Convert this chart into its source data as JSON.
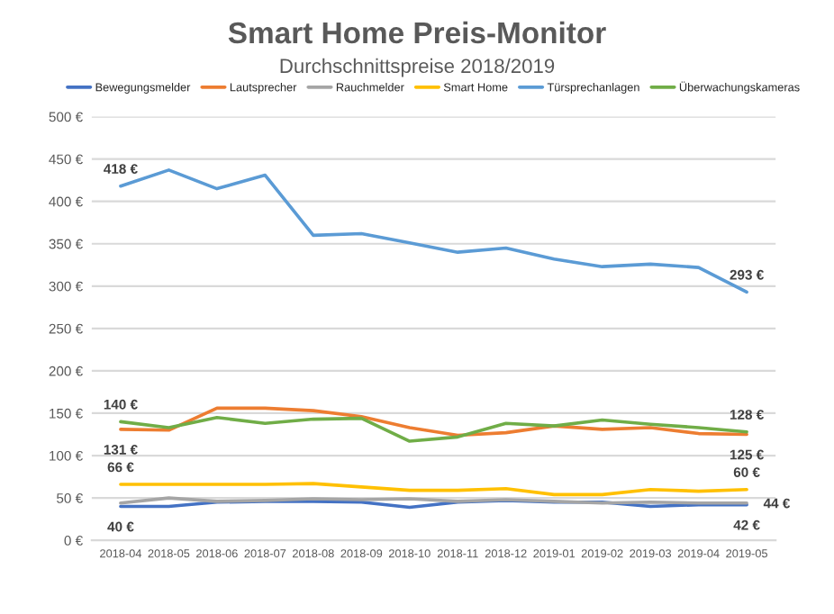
{
  "chart_data": {
    "type": "line",
    "title": "Smart Home Preis-Monitor",
    "subtitle": "Durchschnittspreise 2018/2019",
    "categories": [
      "2018-04",
      "2018-05",
      "2018-06",
      "2018-07",
      "2018-08",
      "2018-09",
      "2018-10",
      "2018-11",
      "2018-12",
      "2019-01",
      "2019-02",
      "2019-03",
      "2019-04",
      "2019-05"
    ],
    "series": [
      {
        "name": "Bewegungsmelder",
        "color": "#4472c4",
        "values": [
          40,
          40,
          45,
          46,
          46,
          45,
          39,
          45,
          47,
          45,
          45,
          40,
          42,
          42
        ],
        "value_labels": [
          "40 €",
          null,
          null,
          null,
          null,
          null,
          null,
          null,
          null,
          null,
          null,
          null,
          null,
          "42 €"
        ]
      },
      {
        "name": "Lautsprecher",
        "color": "#ed7d31",
        "values": [
          131,
          130,
          156,
          156,
          153,
          146,
          133,
          124,
          127,
          135,
          131,
          133,
          126,
          125
        ],
        "value_labels": [
          "131 €",
          null,
          null,
          null,
          null,
          null,
          null,
          null,
          null,
          null,
          null,
          null,
          null,
          "125 €"
        ]
      },
      {
        "name": "Rauchmelder",
        "color": "#a5a5a5",
        "values": [
          44,
          50,
          46,
          47,
          49,
          48,
          49,
          46,
          48,
          46,
          44,
          45,
          44,
          44
        ],
        "value_labels": [
          null,
          null,
          null,
          null,
          null,
          null,
          null,
          null,
          null,
          null,
          null,
          null,
          null,
          "44 €"
        ]
      },
      {
        "name": "Smart Home",
        "color": "#ffc000",
        "values": [
          66,
          66,
          66,
          66,
          67,
          63,
          59,
          59,
          61,
          54,
          54,
          60,
          58,
          60
        ],
        "value_labels": [
          "66 €",
          null,
          null,
          null,
          null,
          null,
          null,
          null,
          null,
          null,
          null,
          null,
          null,
          "60 €"
        ]
      },
      {
        "name": "Türsprechanlagen",
        "color": "#5b9bd5",
        "values": [
          418,
          437,
          415,
          431,
          360,
          362,
          351,
          340,
          345,
          332,
          323,
          326,
          322,
          293
        ],
        "value_labels": [
          "418 €",
          null,
          null,
          null,
          null,
          null,
          null,
          null,
          null,
          null,
          null,
          null,
          null,
          "293 €"
        ]
      },
      {
        "name": "Überwachungskameras",
        "color": "#70ad47",
        "values": [
          140,
          133,
          145,
          138,
          143,
          144,
          117,
          122,
          138,
          135,
          142,
          137,
          133,
          128
        ],
        "value_labels": [
          "140 €",
          null,
          null,
          null,
          null,
          null,
          null,
          null,
          null,
          null,
          null,
          null,
          null,
          "128 €"
        ]
      }
    ],
    "ylim": [
      0,
      500
    ],
    "yticks": [
      {
        "value": 0,
        "label": "0 €"
      },
      {
        "value": 50,
        "label": "50 €"
      },
      {
        "value": 100,
        "label": "100 €"
      },
      {
        "value": 150,
        "label": "150 €"
      },
      {
        "value": 200,
        "label": "200 €"
      },
      {
        "value": 250,
        "label": "250 €"
      },
      {
        "value": 300,
        "label": "300 €"
      },
      {
        "value": 350,
        "label": "350 €"
      },
      {
        "value": 400,
        "label": "400 €"
      },
      {
        "value": 450,
        "label": "450 €"
      },
      {
        "value": 500,
        "label": "500 €"
      }
    ],
    "grid": "y",
    "legend": "top",
    "marker": "none",
    "line_style": "solid"
  }
}
